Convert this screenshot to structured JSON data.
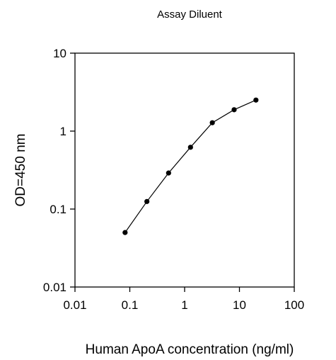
{
  "chart_data": {
    "type": "line",
    "title": "Assay Diluent",
    "xlabel": "Human ApoA concentration (ng/ml)",
    "ylabel": "OD=450 nm",
    "x_scale": "log",
    "y_scale": "log",
    "xlim": [
      0.01,
      100
    ],
    "ylim": [
      0.01,
      10
    ],
    "x_ticks": [
      0.01,
      0.1,
      1,
      10,
      100
    ],
    "x_tick_labels": [
      "0.01",
      "0.1",
      "1",
      "10",
      "100"
    ],
    "y_ticks": [
      0.01,
      0.1,
      1,
      10
    ],
    "y_tick_labels": [
      "0.01",
      "0.1",
      "1",
      "10"
    ],
    "grid": false,
    "series": [
      {
        "x": [
          0.082,
          0.205,
          0.51,
          1.28,
          3.2,
          8.0,
          20.0
        ],
        "y": [
          0.05,
          0.125,
          0.29,
          0.62,
          1.28,
          1.88,
          2.5
        ],
        "color": "#000000",
        "marker": "circle"
      }
    ]
  }
}
